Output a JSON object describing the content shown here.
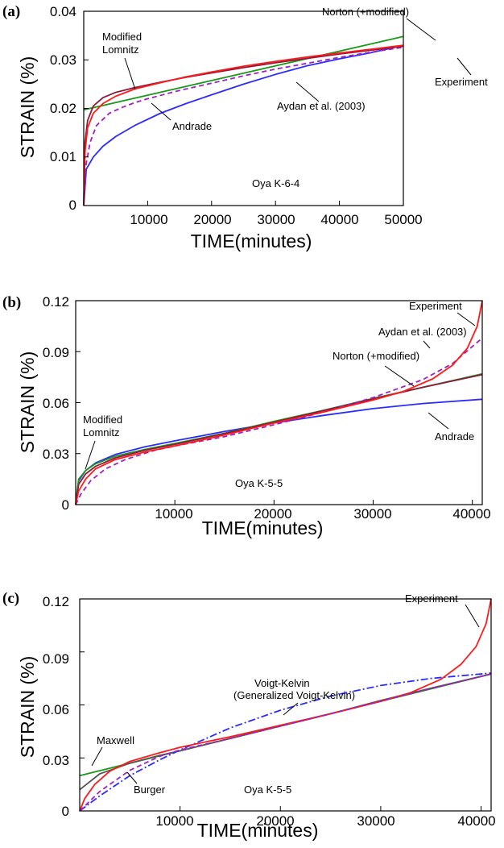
{
  "chart_data": [
    {
      "type": "line",
      "panel_label": "(a)",
      "xlabel": "TIME(minutes)",
      "ylabel": "STRAIN (%)",
      "xlim": [
        0,
        50000
      ],
      "ylim": [
        0,
        0.04
      ],
      "xticks": [
        10000,
        20000,
        30000,
        40000,
        50000
      ],
      "xtick_labels": [
        "10000",
        "20000",
        "30000",
        "40000",
        "50000"
      ],
      "yticks": [
        0,
        0.01,
        0.02,
        0.03,
        0.04
      ],
      "ytick_labels": [
        "0",
        "0.01",
        "0.02",
        "0.03",
        "0.04"
      ],
      "specimen_label": "Oya K-6-4",
      "series": [
        {
          "name": "Norton (+modified)",
          "color": "#1a9a1a",
          "dash": "solid",
          "x": [
            0,
            50000
          ],
          "y": [
            0.0197,
            0.0348
          ]
        },
        {
          "name": "Andrade",
          "color": "#2b2bff",
          "dash": "solid",
          "x": [
            0,
            400,
            1500,
            3000,
            5000,
            8000,
            12000,
            16000,
            20000,
            25000,
            30000,
            35000,
            40000,
            45000,
            50000
          ],
          "y": [
            0,
            0.0075,
            0.01,
            0.0122,
            0.0142,
            0.0165,
            0.019,
            0.021,
            0.0228,
            0.025,
            0.027,
            0.0288,
            0.0302,
            0.0315,
            0.033
          ]
        },
        {
          "name": "Aydan et al. (2003)",
          "color": "#a020c0",
          "dash": "dashed",
          "x": [
            0,
            300,
            1000,
            2000,
            4000,
            6000,
            8000,
            10000,
            15000,
            20000,
            25000,
            30000,
            35000,
            40000,
            45000,
            50000
          ],
          "y": [
            0,
            0.008,
            0.013,
            0.0165,
            0.019,
            0.0202,
            0.0212,
            0.022,
            0.0237,
            0.0252,
            0.0267,
            0.0281,
            0.0293,
            0.0305,
            0.0316,
            0.0326
          ]
        },
        {
          "name": "Modified Lomnitz",
          "color": "#8b1a3c",
          "dash": "solid",
          "x": [
            0,
            200,
            600,
            1500,
            3000,
            5000,
            8000,
            12000,
            16000,
            20000,
            25000,
            30000,
            35000,
            40000,
            45000,
            50000
          ],
          "y": [
            0,
            0.013,
            0.0175,
            0.0205,
            0.0222,
            0.0233,
            0.0243,
            0.0254,
            0.0264,
            0.0273,
            0.0284,
            0.0294,
            0.0303,
            0.0312,
            0.032,
            0.0328
          ]
        },
        {
          "name": "Experiment",
          "color": "#ff1a1a",
          "dash": "solid",
          "x": [
            0,
            200,
            600,
            1500,
            3000,
            5000,
            8000,
            12000,
            16000,
            20000,
            25000,
            30000,
            35000,
            40000,
            45000,
            50000
          ],
          "y": [
            0,
            0.011,
            0.016,
            0.019,
            0.021,
            0.0225,
            0.024,
            0.0253,
            0.0265,
            0.0275,
            0.0287,
            0.0297,
            0.0306,
            0.0314,
            0.0322,
            0.033
          ]
        }
      ],
      "annotations": [
        {
          "text": "Norton (+modified)"
        },
        {
          "text": "Modified"
        },
        {
          "text": "Lomnitz"
        },
        {
          "text": "Experiment"
        },
        {
          "text": "Aydan et al. (2003)"
        },
        {
          "text": "Andrade"
        }
      ]
    },
    {
      "type": "line",
      "panel_label": "(b)",
      "xlabel": "TIME(minutes)",
      "ylabel": "STRAIN (%)",
      "xlim": [
        0,
        41000
      ],
      "ylim": [
        0,
        0.12
      ],
      "xticks": [
        10000,
        20000,
        30000,
        40000
      ],
      "xtick_labels": [
        "10000",
        "20000",
        "30000",
        "40000"
      ],
      "yticks": [
        0,
        0.03,
        0.06,
        0.09,
        0.12
      ],
      "ytick_labels": [
        "0",
        "0.03",
        "0.06",
        "0.09",
        "0.12"
      ],
      "specimen_label": "Oya K-5-5",
      "series": [
        {
          "name": "Andrade",
          "color": "#2b2bff",
          "dash": "solid",
          "x": [
            0,
            300,
            1000,
            2000,
            4000,
            7000,
            10000,
            15000,
            20000,
            25000,
            30000,
            35000,
            41000
          ],
          "y": [
            0,
            0.014,
            0.02,
            0.0245,
            0.0295,
            0.034,
            0.0375,
            0.043,
            0.048,
            0.0525,
            0.0565,
            0.0595,
            0.062
          ]
        },
        {
          "name": "Norton (+modified)",
          "color": "#1a9a1a",
          "dash": "solid",
          "x": [
            0,
            300,
            1000,
            2000,
            4000,
            7000,
            10000,
            15000,
            20000,
            25000,
            30000,
            35000,
            41000
          ],
          "y": [
            0,
            0.015,
            0.02,
            0.024,
            0.0285,
            0.0325,
            0.036,
            0.042,
            0.049,
            0.0555,
            0.0625,
            0.069,
            0.077
          ]
        },
        {
          "name": "Modified Lomnitz",
          "color": "#8b1a3c",
          "dash": "solid",
          "x": [
            0,
            300,
            1000,
            2000,
            4000,
            7000,
            10000,
            15000,
            20000,
            25000,
            30000,
            35000,
            41000
          ],
          "y": [
            0,
            0.012,
            0.018,
            0.0225,
            0.0275,
            0.032,
            0.0355,
            0.0418,
            0.0485,
            0.0553,
            0.0622,
            0.069,
            0.0765
          ]
        },
        {
          "name": "Aydan et al. (2003)",
          "color": "#a020c0",
          "dash": "dashed",
          "x": [
            0,
            500,
            1500,
            3000,
            5000,
            8000,
            10000,
            15000,
            20000,
            25000,
            30000,
            35000,
            38000,
            41000
          ],
          "y": [
            0,
            0.006,
            0.014,
            0.021,
            0.0265,
            0.032,
            0.0345,
            0.04,
            0.047,
            0.0545,
            0.063,
            0.0735,
            0.083,
            0.098
          ]
        },
        {
          "name": "Experiment",
          "color": "#ff1a1a",
          "dash": "solid",
          "x": [
            0,
            300,
            1000,
            2000,
            4000,
            7000,
            10000,
            15000,
            20000,
            25000,
            30000,
            33000,
            36000,
            38000,
            39500,
            40500,
            41000
          ],
          "y": [
            0,
            0.008,
            0.015,
            0.021,
            0.0265,
            0.031,
            0.0345,
            0.041,
            0.048,
            0.0545,
            0.0615,
            0.0665,
            0.074,
            0.082,
            0.092,
            0.105,
            0.12
          ]
        }
      ],
      "annotations": [
        {
          "text": "Experiment"
        },
        {
          "text": "Aydan et al. (2003)"
        },
        {
          "text": "Norton (+modified)"
        },
        {
          "text": "Modified"
        },
        {
          "text": "Lomnitz"
        },
        {
          "text": "Andrade"
        }
      ]
    },
    {
      "type": "line",
      "panel_label": "(c)",
      "xlabel": "TIME(minutes)",
      "ylabel": "STRAIN (%)",
      "xlim": [
        0,
        41000
      ],
      "ylim": [
        0,
        0.12
      ],
      "xticks": [
        10000,
        20000,
        30000,
        40000
      ],
      "xtick_labels": [
        "10000",
        "20000",
        "30000",
        "40000"
      ],
      "yticks": [
        0,
        0.03,
        0.06,
        0.09,
        0.12
      ],
      "ytick_labels": [
        "0",
        "0.03",
        "0.06",
        "0.09",
        "0.12"
      ],
      "specimen_label": "Oya K-5-5",
      "series": [
        {
          "name": "Maxwell",
          "color": "#1a9a1a",
          "dash": "solid",
          "x": [
            0,
            41000
          ],
          "y": [
            0.02,
            0.0775
          ]
        },
        {
          "name": "Burger",
          "color": "#555555",
          "dash": "solid",
          "x": [
            0,
            2000,
            5000,
            8000,
            10000,
            15000,
            20000,
            25000,
            30000,
            35000,
            41000
          ],
          "y": [
            0.012,
            0.021,
            0.027,
            0.0315,
            0.034,
            0.041,
            0.048,
            0.055,
            0.0625,
            0.0695,
            0.0775
          ]
        },
        {
          "name": "Voigt-Kelvin (Generalized Voigt-Kelvin)",
          "color": "#2b2bff",
          "dash": "dashdot",
          "x": [
            0,
            2000,
            5000,
            8000,
            10000,
            15000,
            20000,
            25000,
            30000,
            35000,
            41000
          ],
          "y": [
            0,
            0.0085,
            0.02,
            0.029,
            0.0345,
            0.047,
            0.057,
            0.065,
            0.071,
            0.075,
            0.078
          ]
        },
        {
          "name": "Experiment",
          "color": "#ff1a1a",
          "dash": "solid",
          "x": [
            0,
            500,
            1500,
            3000,
            5000,
            8000,
            10000,
            15000,
            20000,
            25000,
            30000,
            33000,
            36000,
            38000,
            39500,
            40500,
            41000
          ],
          "y": [
            0,
            0.007,
            0.015,
            0.0225,
            0.028,
            0.033,
            0.036,
            0.042,
            0.0485,
            0.055,
            0.062,
            0.067,
            0.0745,
            0.083,
            0.093,
            0.106,
            0.12
          ]
        },
        {
          "name": "",
          "color": "#a020c0",
          "dash": "dashed",
          "x": [
            0,
            2000,
            5000,
            8000,
            10000,
            15000,
            20000,
            25000,
            30000,
            35000,
            41000
          ],
          "y": [
            0,
            0.011,
            0.023,
            0.031,
            0.0345,
            0.041,
            0.048,
            0.055,
            0.0622,
            0.0692,
            0.0775
          ]
        }
      ],
      "annotations": [
        {
          "text": "Experiment"
        },
        {
          "text": "Voigt-Kelvin"
        },
        {
          "text": "(Generalized Voigt-Kelvin)"
        },
        {
          "text": "Maxwell"
        },
        {
          "text": "Burger"
        }
      ]
    }
  ]
}
